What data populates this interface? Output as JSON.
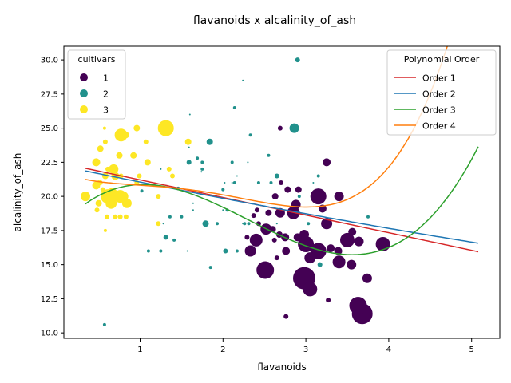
{
  "chart_data": {
    "type": "scatter",
    "title": "flavanoids x alcalinity_of_ash",
    "xlabel": "flavanoids",
    "ylabel": "alcalinity_of_ash",
    "xlim": [
      0.08,
      5.34
    ],
    "ylim": [
      9.6,
      31.0
    ],
    "xticks": [
      "1",
      "2",
      "3",
      "4",
      "5"
    ],
    "xtick_values": [
      1,
      2,
      3,
      4,
      5
    ],
    "yticks": [
      "10.0",
      "12.5",
      "15.0",
      "17.5",
      "20.0",
      "22.5",
      "25.0",
      "27.5",
      "30.0"
    ],
    "ytick_values": [
      10.0,
      12.5,
      15.0,
      17.5,
      20.0,
      22.5,
      25.0,
      27.5,
      30.0
    ],
    "grid": false,
    "legends": {
      "cultivars": {
        "title": "cultivars",
        "placement": "top-left",
        "entries": [
          {
            "label": "1",
            "color": "#440154"
          },
          {
            "label": "2",
            "color": "#21918c"
          },
          {
            "label": "3",
            "color": "#fde725"
          }
        ]
      },
      "fits": {
        "title": "Polynomial Order",
        "placement": "top-right",
        "entries": [
          {
            "label": "Order 1",
            "color": "#d62728"
          },
          {
            "label": "Order 2",
            "color": "#1f77b4"
          },
          {
            "label": "Order 3",
            "color": "#2ca02c"
          },
          {
            "label": "Order 4",
            "color": "#ff7f0e"
          }
        ]
      }
    },
    "series": [
      {
        "name": "1",
        "color": "#440154",
        "points": [
          [
            2.98,
            14.0,
            14
          ],
          [
            3.68,
            11.4,
            13
          ],
          [
            3.63,
            12.0,
            11
          ],
          [
            2.51,
            14.6,
            11
          ],
          [
            3.05,
            13.2,
            9
          ],
          [
            3.15,
            16.0,
            10
          ],
          [
            3.0,
            16.5,
            10
          ],
          [
            3.15,
            20.0,
            10
          ],
          [
            3.5,
            16.8,
            9
          ],
          [
            3.93,
            16.5,
            9
          ],
          [
            3.4,
            15.2,
            8
          ],
          [
            2.85,
            18.8,
            8
          ],
          [
            3.25,
            18.0,
            7
          ],
          [
            2.4,
            16.8,
            8
          ],
          [
            2.33,
            16.0,
            7
          ],
          [
            2.52,
            17.6,
            7
          ],
          [
            3.05,
            15.5,
            7
          ],
          [
            2.98,
            17.2,
            6
          ],
          [
            2.69,
            18.8,
            6
          ],
          [
            3.55,
            15.0,
            6
          ],
          [
            2.88,
            19.4,
            6
          ],
          [
            3.4,
            20.0,
            6
          ],
          [
            3.74,
            14.0,
            6
          ],
          [
            3.64,
            16.7,
            6
          ],
          [
            3.25,
            22.5,
            5
          ],
          [
            3.39,
            16.0,
            5
          ],
          [
            3.56,
            17.4,
            5
          ],
          [
            2.76,
            16.0,
            5
          ],
          [
            2.9,
            17.0,
            5
          ],
          [
            3.2,
            19.1,
            5
          ],
          [
            2.63,
            20.0,
            4
          ],
          [
            2.78,
            20.5,
            4
          ],
          [
            2.91,
            20.5,
            4
          ],
          [
            3.3,
            16.2,
            5
          ],
          [
            2.75,
            17.0,
            5
          ],
          [
            2.68,
            17.2,
            4
          ],
          [
            2.6,
            17.6,
            4
          ],
          [
            2.65,
            15.5,
            3
          ],
          [
            2.69,
            25.0,
            3
          ],
          [
            2.43,
            18.0,
            3
          ],
          [
            2.41,
            19.0,
            3
          ],
          [
            2.29,
            17.0,
            3
          ],
          [
            2.7,
            21.0,
            3
          ],
          [
            2.76,
            11.2,
            3
          ],
          [
            3.27,
            12.4,
            3
          ],
          [
            2.37,
            18.6,
            3
          ],
          [
            2.62,
            16.8,
            3
          ],
          [
            2.55,
            18.8,
            4
          ]
        ]
      },
      {
        "name": "2",
        "color": "#21918c",
        "points": [
          [
            2.86,
            25.0,
            6
          ],
          [
            1.84,
            24.0,
            4
          ],
          [
            1.79,
            18.0,
            4
          ],
          [
            1.59,
            22.5,
            3
          ],
          [
            2.9,
            30.0,
            3
          ],
          [
            1.31,
            17.0,
            3
          ],
          [
            2.03,
            16.0,
            3
          ],
          [
            2.65,
            21.5,
            3
          ],
          [
            3.03,
            18.0,
            2
          ],
          [
            2.58,
            21.0,
            2
          ],
          [
            2.0,
            20.5,
            2
          ],
          [
            2.14,
            26.5,
            2
          ],
          [
            2.33,
            24.5,
            2
          ],
          [
            2.55,
            23.0,
            2
          ],
          [
            1.75,
            22.0,
            2
          ],
          [
            1.25,
            16.0,
            2
          ],
          [
            1.1,
            16.0,
            2
          ],
          [
            1.36,
            18.5,
            2
          ],
          [
            1.41,
            16.8,
            2
          ],
          [
            1.02,
            20.4,
            2
          ],
          [
            2.26,
            18.0,
            2
          ],
          [
            2.31,
            18.0,
            2
          ],
          [
            2.24,
            28.5,
            1
          ],
          [
            1.6,
            26.0,
            1
          ],
          [
            2.17,
            21.5,
            1
          ],
          [
            2.11,
            21.0,
            1
          ],
          [
            1.93,
            18.0,
            2
          ],
          [
            1.85,
            14.8,
            2
          ],
          [
            2.65,
            18.0,
            1
          ],
          [
            1.28,
            18.0,
            1
          ],
          [
            1.69,
            22.8,
            2
          ],
          [
            1.75,
            22.5,
            2
          ],
          [
            1.59,
            23.6,
            1
          ],
          [
            2.11,
            22.5,
            2
          ],
          [
            2.3,
            22.5,
            1
          ],
          [
            1.5,
            18.5,
            2
          ],
          [
            1.57,
            16.0,
            1
          ],
          [
            0.57,
            10.6,
            2
          ],
          [
            3.15,
            21.5,
            2
          ],
          [
            3.17,
            15.0,
            3
          ],
          [
            3.75,
            18.5,
            2
          ],
          [
            2.43,
            21.0,
            2
          ],
          [
            1.64,
            19.5,
            1
          ],
          [
            1.64,
            19.0,
            1
          ],
          [
            2.05,
            19.0,
            2
          ],
          [
            2.17,
            16.0,
            2
          ],
          [
            2.92,
            20.0,
            2
          ],
          [
            2.14,
            21.0,
            2
          ],
          [
            1.46,
            20.6,
            2
          ],
          [
            1.25,
            22.0,
            1
          ],
          [
            2.0,
            19.0,
            1
          ],
          [
            2.24,
            18.0,
            1
          ],
          [
            2.02,
            21.0,
            1
          ],
          [
            1.74,
            21.8,
            1
          ],
          [
            3.09,
            21.0,
            1
          ]
        ]
      },
      {
        "name": "3",
        "color": "#fde725",
        "points": [
          [
            0.77,
            24.5,
            8
          ],
          [
            1.31,
            25.0,
            10
          ],
          [
            0.34,
            20.0,
            6
          ],
          [
            0.47,
            22.5,
            5
          ],
          [
            0.61,
            20.0,
            9
          ],
          [
            0.65,
            19.5,
            7
          ],
          [
            0.76,
            20.0,
            8
          ],
          [
            0.84,
            19.5,
            6
          ],
          [
            0.68,
            22.0,
            6
          ],
          [
            0.52,
            23.5,
            4
          ],
          [
            0.7,
            21.5,
            5
          ],
          [
            0.66,
            20.2,
            7
          ],
          [
            0.8,
            20.0,
            6
          ],
          [
            1.58,
            24.0,
            4
          ],
          [
            0.96,
            25.0,
            4
          ],
          [
            1.09,
            22.5,
            4
          ],
          [
            0.92,
            23.0,
            4
          ],
          [
            0.75,
            23.0,
            4
          ],
          [
            0.5,
            19.5,
            4
          ],
          [
            0.47,
            20.8,
            5
          ],
          [
            0.6,
            18.5,
            3
          ],
          [
            0.83,
            24.5,
            4
          ],
          [
            0.48,
            19.0,
            3
          ],
          [
            0.55,
            20.5,
            3
          ],
          [
            0.73,
            20.0,
            4
          ],
          [
            0.58,
            21.5,
            4
          ],
          [
            0.63,
            22.0,
            3
          ],
          [
            0.7,
            18.5,
            3
          ],
          [
            0.83,
            18.5,
            3
          ],
          [
            0.96,
            21.0,
            3
          ],
          [
            1.22,
            18.0,
            3
          ],
          [
            1.22,
            20.0,
            3
          ],
          [
            1.35,
            22.0,
            3
          ],
          [
            1.39,
            21.5,
            3
          ],
          [
            0.99,
            21.5,
            3
          ],
          [
            0.57,
            25.0,
            2
          ],
          [
            0.58,
            24.0,
            3
          ],
          [
            0.58,
            17.5,
            2
          ],
          [
            0.65,
            19.5,
            3
          ],
          [
            0.77,
            21.5,
            3
          ],
          [
            1.07,
            24.0,
            3
          ],
          [
            0.76,
            18.5,
            3
          ],
          [
            0.5,
            21.0,
            3
          ],
          [
            0.52,
            21.0,
            3
          ],
          [
            0.61,
            22.0,
            3
          ]
        ]
      }
    ],
    "fits": [
      {
        "name": "Order 1",
        "color": "#d62728",
        "degree": 1,
        "coef": [
          22.5,
          -1.29
        ]
      },
      {
        "name": "Order 2",
        "color": "#1f77b4",
        "degree": 2,
        "coef": [
          22.3,
          -1.28,
          0.03
        ]
      },
      {
        "name": "Order 3",
        "color": "#2ca02c",
        "degree": 3,
        "coef": [
          17.5,
          7.17,
          -4.45,
          0.645
        ]
      },
      {
        "name": "Order 4",
        "color": "#ff7f0e",
        "degree": 4,
        "coef": [
          21.85,
          -2.5,
          2.5,
          -1.22,
          0.189
        ]
      }
    ],
    "fit_x_range": [
      0.34,
      5.08
    ]
  }
}
